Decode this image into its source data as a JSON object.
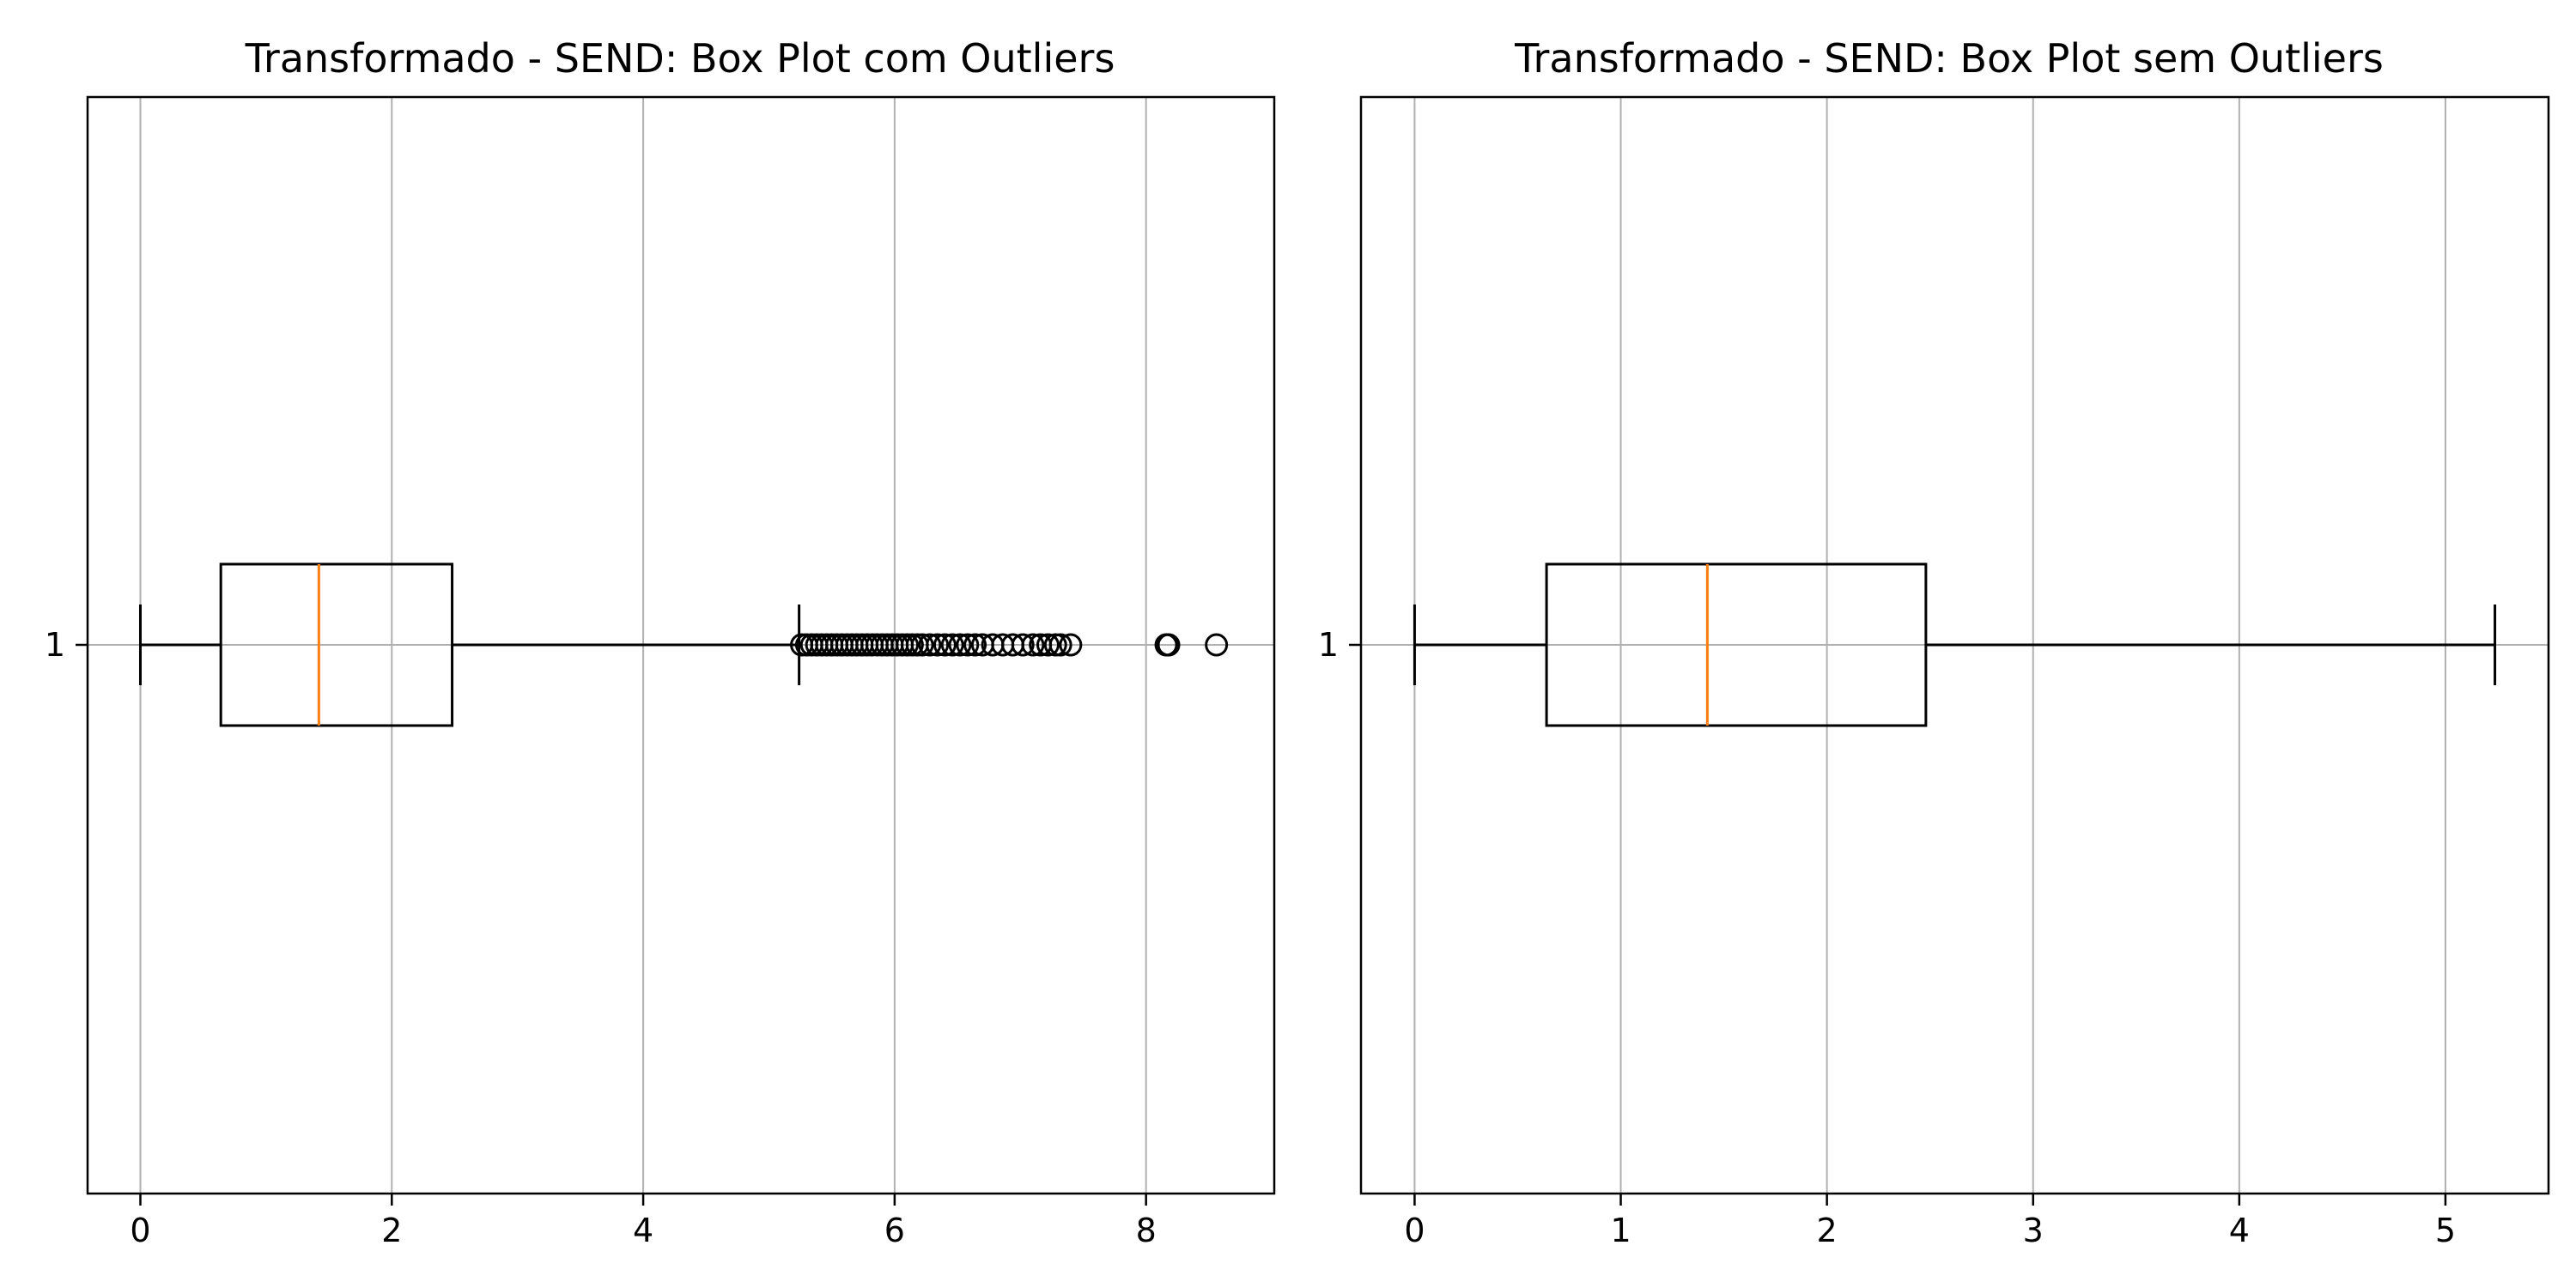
{
  "chart_data": [
    {
      "type": "boxplot",
      "orientation": "horizontal",
      "title": "Transformado - SEND: Box Plot com Outliers",
      "xlabel": "",
      "ylabel": "",
      "xlim": [
        -0.42,
        9.02
      ],
      "xticks": [
        0,
        2,
        4,
        6,
        8
      ],
      "yticks": [
        "1"
      ],
      "grid": true,
      "box": {
        "whisker_low": 0.0,
        "q1": 0.64,
        "median": 1.42,
        "q3": 2.48,
        "whisker_high": 5.24
      },
      "outliers": [
        5.26,
        5.3,
        5.34,
        5.38,
        5.42,
        5.46,
        5.5,
        5.54,
        5.58,
        5.62,
        5.66,
        5.7,
        5.74,
        5.78,
        5.82,
        5.86,
        5.9,
        5.94,
        5.98,
        6.02,
        6.06,
        6.1,
        6.14,
        6.18,
        6.22,
        6.28,
        6.34,
        6.4,
        6.46,
        6.52,
        6.58,
        6.64,
        6.7,
        6.78,
        6.86,
        6.94,
        7.02,
        7.1,
        7.16,
        7.22,
        7.28,
        7.32,
        7.4,
        8.16,
        8.18,
        8.56
      ]
    },
    {
      "type": "boxplot",
      "orientation": "horizontal",
      "title": "Transformado - SEND:  Box Plot sem Outliers",
      "xlabel": "",
      "ylabel": "",
      "xlim": [
        -0.26,
        5.5
      ],
      "xticks": [
        0,
        1,
        2,
        3,
        4,
        5
      ],
      "yticks": [
        "1"
      ],
      "grid": true,
      "box": {
        "whisker_low": 0.0,
        "q1": 0.64,
        "median": 1.42,
        "q3": 2.48,
        "whisker_high": 5.24
      },
      "outliers": []
    }
  ],
  "colors": {
    "box": "#000000",
    "median": "#ff7f0e",
    "grid": "#b0b0b0",
    "outlier": "#000000"
  }
}
